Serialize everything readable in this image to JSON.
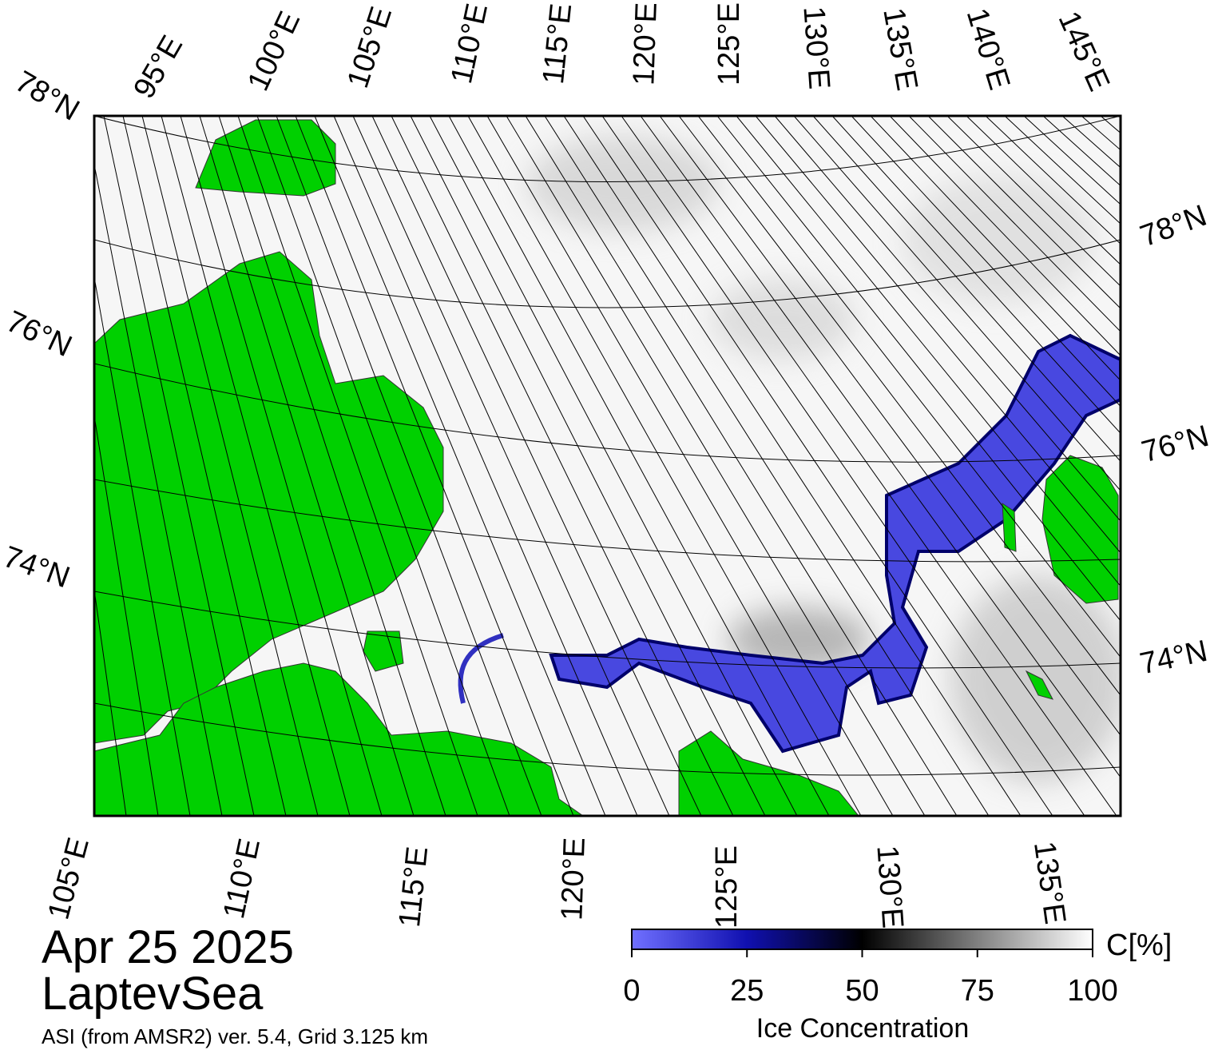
{
  "title": "Apr 25 2025",
  "region": "LaptevSea",
  "source": "ASI (from AMSR2) ver. 5.4,  Grid 3.125 km",
  "top_lon_labels": [
    "95°E",
    "100°E",
    "105°E",
    "110°E",
    "115°E",
    "120°E",
    "125°E",
    "130°E",
    "135°E",
    "140°E",
    "145°E"
  ],
  "bottom_lon_labels": [
    "105°E",
    "110°E",
    "115°E",
    "120°E",
    "125°E",
    "130°E",
    "135°E"
  ],
  "left_lat_labels": [
    "78°N",
    "76°N",
    "74°N"
  ],
  "right_lat_labels": [
    "78°N",
    "76°N",
    "74°N"
  ],
  "colorbar": {
    "label": "Ice Concentration",
    "unit": "C[%]",
    "clim": [
      0,
      100
    ],
    "ticks": [
      0,
      25,
      50,
      75,
      100
    ]
  }
}
